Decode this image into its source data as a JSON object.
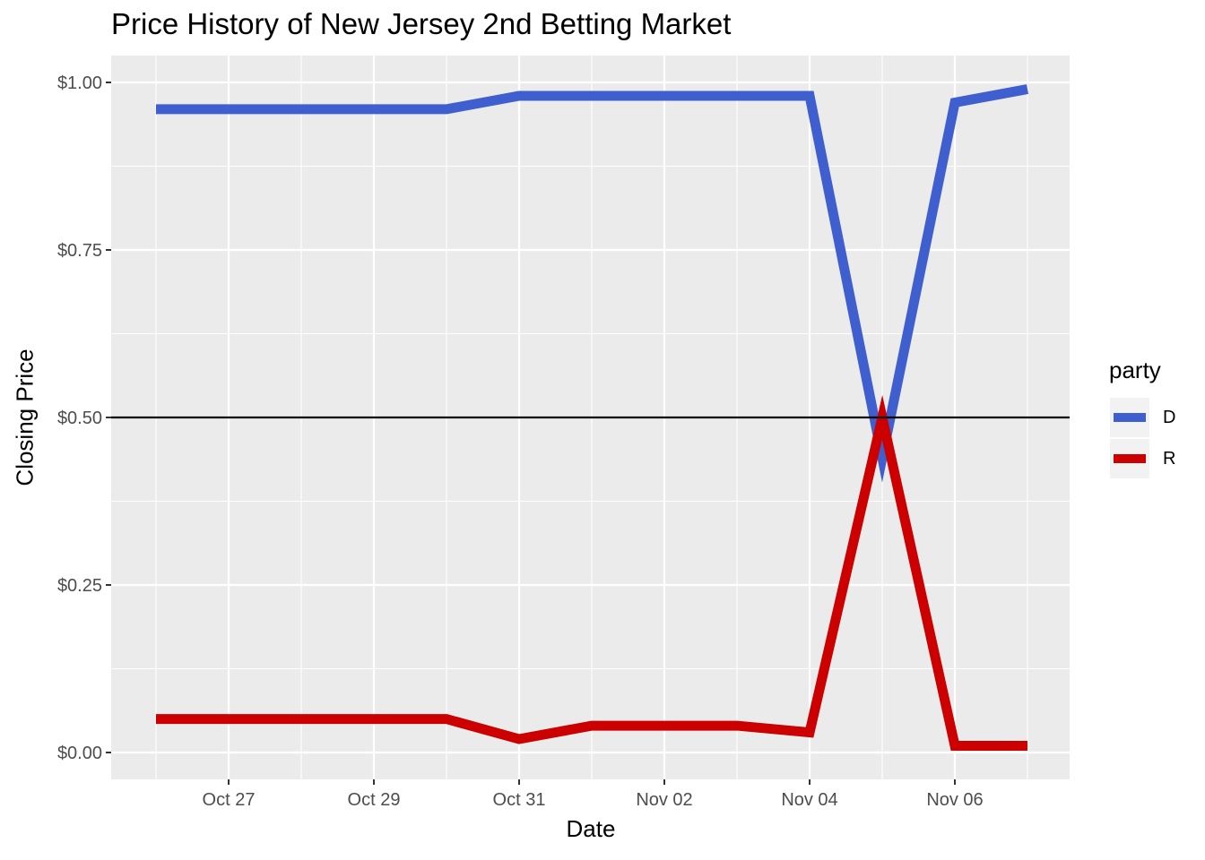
{
  "chart_data": {
    "type": "line",
    "title": "Price History of New Jersey 2nd Betting Market",
    "xlabel": "Date",
    "ylabel": "Closing Price",
    "x": [
      "2020-10-26",
      "2020-10-27",
      "2020-10-28",
      "2020-10-29",
      "2020-10-30",
      "2020-10-31",
      "2020-11-01",
      "2020-11-02",
      "2020-11-03",
      "2020-11-04",
      "2020-11-05",
      "2020-11-06",
      "2020-11-07"
    ],
    "x_ticks": [
      "Oct 27",
      "Oct 29",
      "Oct 31",
      "Nov 02",
      "Nov 04",
      "Nov 06"
    ],
    "y_ticks": [
      "$0.00",
      "$0.25",
      "$0.50",
      "$0.75",
      "$1.00"
    ],
    "ylim": [
      0,
      1
    ],
    "reference_line": 0.5,
    "series": [
      {
        "name": "D",
        "color": "#3f5fcf",
        "values": [
          0.96,
          0.96,
          0.96,
          0.96,
          0.96,
          0.98,
          0.98,
          0.98,
          0.98,
          0.98,
          0.44,
          0.97,
          0.99
        ]
      },
      {
        "name": "R",
        "color": "#cc0000",
        "values": [
          0.05,
          0.05,
          0.05,
          0.05,
          0.05,
          0.02,
          0.04,
          0.04,
          0.04,
          0.03,
          0.5,
          0.01,
          0.01
        ]
      }
    ],
    "grid": true,
    "legend_title": "party",
    "legend_position": "right"
  }
}
